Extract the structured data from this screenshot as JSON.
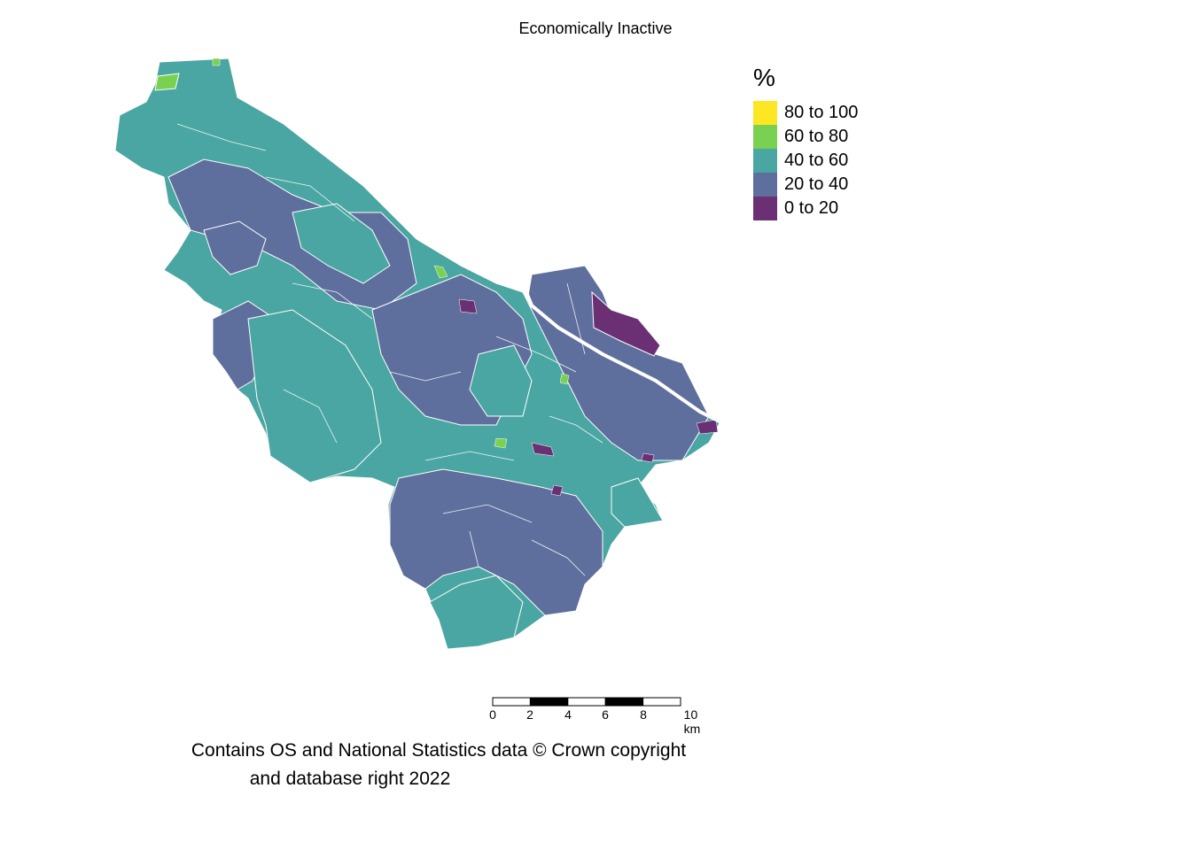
{
  "title": "Economically Inactive",
  "legend": {
    "title": "%",
    "items": [
      {
        "label": "80 to 100",
        "color": "#fde725"
      },
      {
        "label": "60 to 80",
        "color": "#7ad151"
      },
      {
        "label": "40 to 60",
        "color": "#4aa6a2"
      },
      {
        "label": "20 to 40",
        "color": "#5f6f9d"
      },
      {
        "label": "0 to 20",
        "color": "#6b2f73"
      }
    ]
  },
  "scale_bar": {
    "ticks": [
      "0",
      "2",
      "4",
      "6",
      "8",
      "10 km"
    ]
  },
  "credit": {
    "line1": "Contains OS and National Statistics data © Crown copyright",
    "line2": "and database right 2022"
  }
}
